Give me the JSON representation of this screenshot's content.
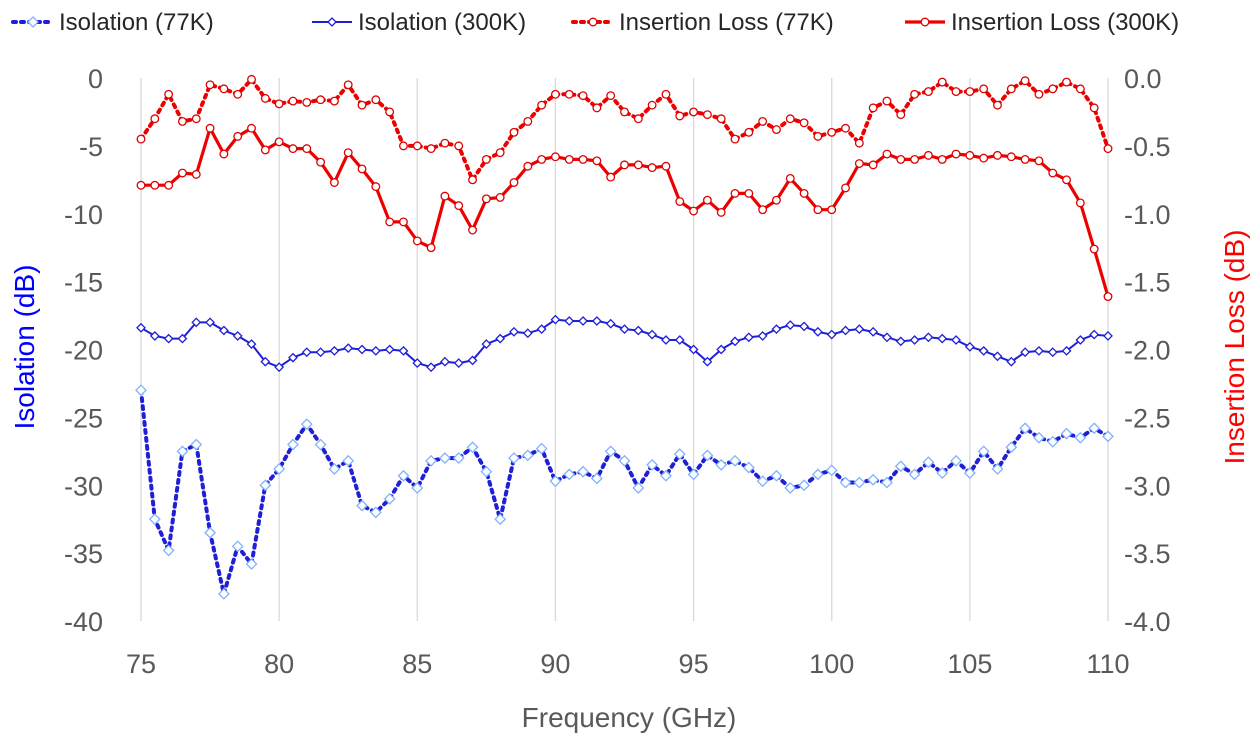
{
  "chart_data": {
    "type": "line",
    "title": "",
    "xlabel": "Frequency (GHz)",
    "ylabel_left": "Isolation (dB)",
    "ylabel_right": "Insertion Loss (dB)",
    "xlim": [
      75,
      110
    ],
    "xticks": [
      "75",
      "80",
      "85",
      "90",
      "95",
      "100",
      "105",
      "110"
    ],
    "ylim_left": [
      -40,
      0
    ],
    "yticks_left": [
      "0",
      "-5",
      "-10",
      "-15",
      "-20",
      "-25",
      "-30",
      "-35",
      "-40"
    ],
    "ylim_right": [
      -4.0,
      0.0
    ],
    "yticks_right": [
      "0.0",
      "-0.5",
      "-1.0",
      "-1.5",
      "-2.0",
      "-2.5",
      "-3.0",
      "-3.5",
      "-4.0"
    ],
    "grid": "vertical",
    "legend_position": "top",
    "colors": {
      "isolation": "#1f1fd6",
      "insertion": "#ee0000",
      "iso_label": "#0000ff",
      "il_label": "#ff0000"
    },
    "x": [
      75.0,
      75.5,
      76.0,
      76.5,
      77.0,
      77.5,
      78.0,
      78.5,
      79.0,
      79.5,
      80.0,
      80.5,
      81.0,
      81.5,
      82.0,
      82.5,
      83.0,
      83.5,
      84.0,
      84.5,
      85.0,
      85.5,
      86.0,
      86.5,
      87.0,
      87.5,
      88.0,
      88.5,
      89.0,
      89.5,
      90.0,
      90.5,
      91.0,
      91.5,
      92.0,
      92.5,
      93.0,
      93.5,
      94.0,
      94.5,
      95.0,
      95.5,
      96.0,
      96.5,
      97.0,
      97.5,
      98.0,
      98.5,
      99.0,
      99.5,
      100.0,
      100.5,
      101.0,
      101.5,
      102.0,
      102.5,
      103.0,
      103.5,
      104.0,
      104.5,
      105.0,
      105.5,
      106.0,
      106.5,
      107.0,
      107.5,
      108.0,
      108.5,
      109.0,
      109.5,
      110.0
    ],
    "series": [
      {
        "name": "Isolation (77K)",
        "axis": "left",
        "style": "dotted-diamond",
        "values": [
          -23.0,
          -32.5,
          -34.8,
          -27.5,
          -27.0,
          -33.5,
          -38.0,
          -34.5,
          -35.8,
          -30.0,
          -28.8,
          -27.0,
          -25.5,
          -27.0,
          -28.8,
          -28.2,
          -31.5,
          -32.0,
          -31.0,
          -29.3,
          -30.2,
          -28.2,
          -28.0,
          -28.0,
          -27.2,
          -29.0,
          -32.5,
          -28.0,
          -27.8,
          -27.3,
          -29.7,
          -29.2,
          -29.0,
          -29.5,
          -27.5,
          -28.2,
          -30.2,
          -28.5,
          -29.3,
          -27.7,
          -29.2,
          -27.8,
          -28.5,
          -28.2,
          -28.7,
          -29.7,
          -29.3,
          -30.2,
          -30.0,
          -29.2,
          -28.9,
          -29.8,
          -29.8,
          -29.6,
          -29.8,
          -28.6,
          -29.2,
          -28.3,
          -29.1,
          -28.2,
          -29.1,
          -27.5,
          -28.8,
          -27.2,
          -25.8,
          -26.5,
          -26.8,
          -26.2,
          -26.5,
          -25.8,
          -26.4
        ]
      },
      {
        "name": "Isolation (300K)",
        "axis": "left",
        "style": "solid-diamond",
        "values": [
          -18.4,
          -19.0,
          -19.2,
          -19.2,
          -18.0,
          -18.0,
          -18.6,
          -19.0,
          -19.6,
          -20.9,
          -21.3,
          -20.6,
          -20.2,
          -20.2,
          -20.1,
          -19.9,
          -20.0,
          -20.1,
          -20.0,
          -20.1,
          -21.0,
          -21.3,
          -20.9,
          -21.0,
          -20.8,
          -19.6,
          -19.2,
          -18.7,
          -18.8,
          -18.5,
          -17.8,
          -17.9,
          -17.9,
          -17.9,
          -18.1,
          -18.5,
          -18.6,
          -18.9,
          -19.3,
          -19.3,
          -20.0,
          -20.9,
          -20.0,
          -19.4,
          -19.1,
          -19.0,
          -18.5,
          -18.2,
          -18.3,
          -18.7,
          -18.9,
          -18.6,
          -18.5,
          -18.7,
          -19.1,
          -19.4,
          -19.3,
          -19.1,
          -19.2,
          -19.3,
          -19.8,
          -20.1,
          -20.5,
          -20.9,
          -20.2,
          -20.1,
          -20.2,
          -20.1,
          -19.3,
          -18.9,
          -19.0
        ]
      },
      {
        "name": "Insertion Loss (77K)",
        "axis": "right",
        "style": "dotted-circle",
        "values": [
          -0.45,
          -0.3,
          -0.12,
          -0.32,
          -0.3,
          -0.05,
          -0.08,
          -0.12,
          -0.01,
          -0.15,
          -0.19,
          -0.17,
          -0.18,
          -0.16,
          -0.17,
          -0.05,
          -0.2,
          -0.16,
          -0.25,
          -0.5,
          -0.5,
          -0.52,
          -0.48,
          -0.5,
          -0.75,
          -0.6,
          -0.55,
          -0.4,
          -0.32,
          -0.2,
          -0.12,
          -0.12,
          -0.13,
          -0.22,
          -0.13,
          -0.25,
          -0.3,
          -0.2,
          -0.12,
          -0.28,
          -0.25,
          -0.27,
          -0.3,
          -0.45,
          -0.4,
          -0.32,
          -0.38,
          -0.3,
          -0.33,
          -0.43,
          -0.4,
          -0.37,
          -0.48,
          -0.22,
          -0.17,
          -0.27,
          -0.12,
          -0.1,
          -0.03,
          -0.1,
          -0.1,
          -0.08,
          -0.2,
          -0.08,
          -0.02,
          -0.12,
          -0.08,
          -0.03,
          -0.08,
          -0.22,
          -0.52
        ]
      },
      {
        "name": "Insertion Loss (300K)",
        "axis": "right",
        "style": "solid-circle",
        "values": [
          -0.79,
          -0.79,
          -0.79,
          -0.7,
          -0.71,
          -0.37,
          -0.56,
          -0.43,
          -0.37,
          -0.53,
          -0.47,
          -0.52,
          -0.52,
          -0.62,
          -0.77,
          -0.55,
          -0.67,
          -0.8,
          -1.06,
          -1.06,
          -1.2,
          -1.25,
          -0.87,
          -0.94,
          -1.12,
          -0.89,
          -0.88,
          -0.77,
          -0.65,
          -0.6,
          -0.58,
          -0.6,
          -0.6,
          -0.61,
          -0.73,
          -0.64,
          -0.64,
          -0.66,
          -0.65,
          -0.91,
          -0.98,
          -0.9,
          -0.99,
          -0.85,
          -0.85,
          -0.97,
          -0.9,
          -0.74,
          -0.85,
          -0.97,
          -0.97,
          -0.81,
          -0.63,
          -0.64,
          -0.56,
          -0.6,
          -0.6,
          -0.57,
          -0.6,
          -0.56,
          -0.57,
          -0.59,
          -0.57,
          -0.58,
          -0.6,
          -0.61,
          -0.7,
          -0.75,
          -0.92,
          -1.26,
          -1.61
        ]
      }
    ]
  }
}
